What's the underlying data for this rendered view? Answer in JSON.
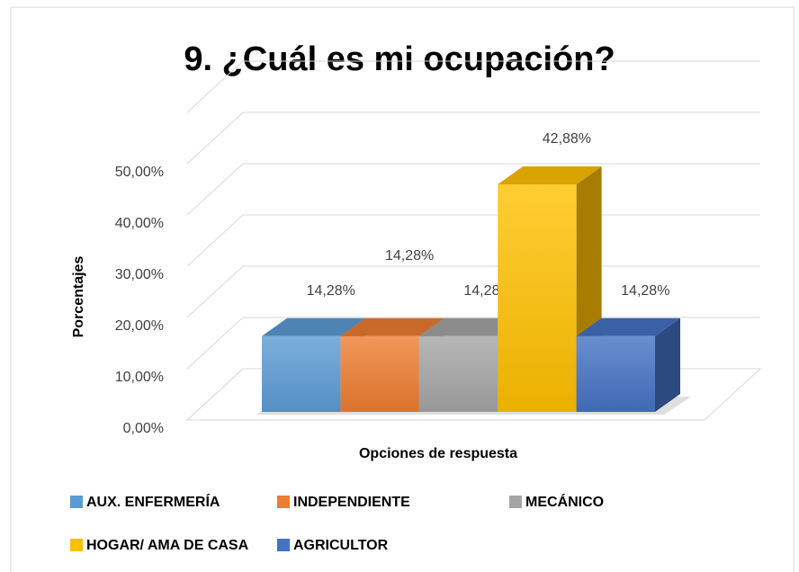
{
  "chart_data": {
    "type": "bar3d",
    "title": "9. ¿Cuál es mi ocupación?",
    "y_label": "Porcentajes",
    "x_label": "Opciones de respuesta",
    "series": [
      {
        "name": "AUX. ENFERMERÍA",
        "color": "#5b9bd5",
        "values": [
          14.28
        ],
        "value_labels": [
          "14,28%"
        ]
      },
      {
        "name": "INDEPENDIENTE",
        "color": "#ed7d31",
        "values": [
          14.28
        ],
        "value_labels": [
          "14,28%"
        ]
      },
      {
        "name": "MECÁNICO",
        "color": "#a5a5a5",
        "values": [
          14.28
        ],
        "value_labels": [
          "14,28%"
        ]
      },
      {
        "name": "HOGAR/ AMA DE CASA",
        "color": "#ffc000",
        "values": [
          42.88
        ],
        "value_labels": [
          "42,88%"
        ]
      },
      {
        "name": "AGRICULTOR",
        "color": "#4472c4",
        "values": [
          14.28
        ],
        "value_labels": [
          "14,28%"
        ]
      }
    ],
    "ylim": [
      0,
      60
    ],
    "yticks": [
      {
        "value": 0,
        "label": "0,00%"
      },
      {
        "value": 10,
        "label": "10,00%"
      },
      {
        "value": 20,
        "label": "20,00%"
      },
      {
        "value": 30,
        "label": "30,00%"
      },
      {
        "value": 40,
        "label": "40,00%"
      },
      {
        "value": 50,
        "label": "50,00%"
      }
    ],
    "grid": true,
    "legend": "bottom"
  }
}
